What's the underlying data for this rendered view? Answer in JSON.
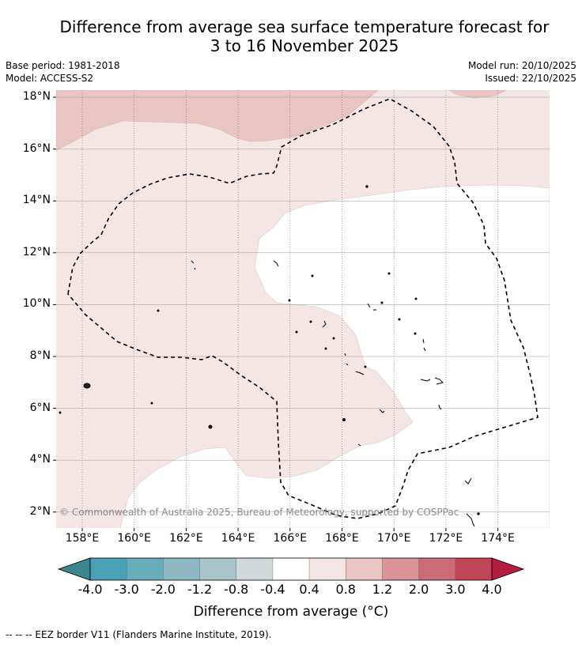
{
  "title": {
    "line1": "Difference from average sea surface temperature forecast for",
    "line2": "3 to 16 November 2025"
  },
  "meta": {
    "base_period": "Base period: 1981-2018",
    "model": "Model: ACCESS-S2",
    "model_run": "Model run: 20/10/2025",
    "issued": "Issued: 22/10/2025"
  },
  "map": {
    "lat_ticks": [
      "18°N",
      "16°N",
      "14°N",
      "12°N",
      "10°N",
      "8°N",
      "6°N",
      "4°N",
      "2°N"
    ],
    "lon_ticks": [
      "158°E",
      "160°E",
      "162°E",
      "164°E",
      "166°E",
      "168°E",
      "170°E",
      "172°E",
      "174°E"
    ],
    "copyright": "© Commonwealth of Australia 2025, Bureau of Meteorology, supported by COSPPac",
    "colors": {
      "anomaly_0_4_to_0_8": "#f4e6e5",
      "anomaly_0_8_to_1_2": "#e8c5c2",
      "anomaly_neg0_4_to_0_4": "#ffffff"
    }
  },
  "colorbar": {
    "labels": [
      "-4.0",
      "-3.0",
      "-2.0",
      "-1.2",
      "-0.8",
      "-0.4",
      "0.4",
      "0.8",
      "1.2",
      "2.0",
      "3.0",
      "4.0"
    ],
    "colors": [
      "#4aa1b3",
      "#69adbd",
      "#8cb8c3",
      "#a8c6ca",
      "#d1d8da",
      "#ffffff",
      "#f4e6e5",
      "#e8c5c2",
      "#da9397",
      "#cc6b76",
      "#c04556"
    ],
    "low_extend_color": "#3d8590",
    "high_extend_color": "#b41d3f",
    "title": "Difference from average (°C)"
  },
  "legend": {
    "eez": "--  --  -- EEZ border V11 (Flanders Marine Institute, 2019)."
  }
}
